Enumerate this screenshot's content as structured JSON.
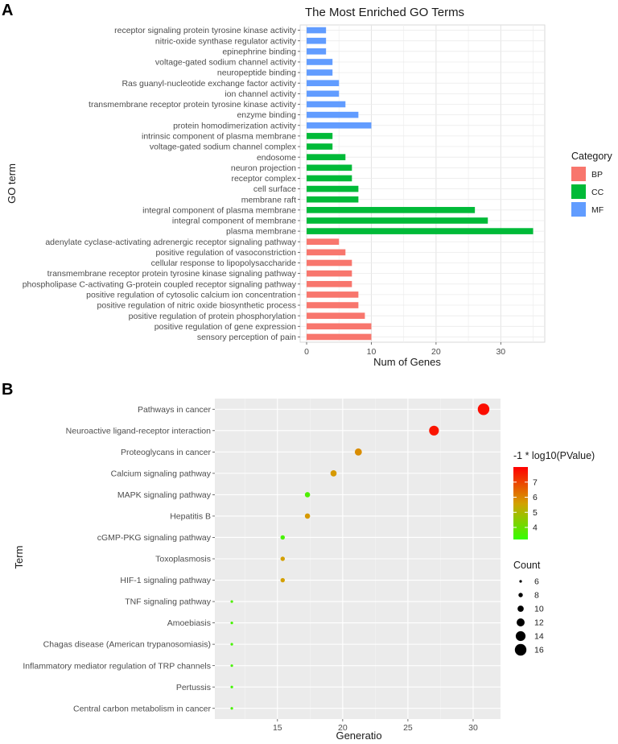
{
  "panels": {
    "a": "A",
    "b": "B"
  },
  "chart_data": [
    {
      "type": "bar",
      "orientation": "horizontal",
      "title": "The Most Enriched GO Terms",
      "xlabel": "Num of Genes",
      "ylabel": "GO term",
      "xlim": [
        -1,
        36.8
      ],
      "xticks": [
        0,
        10,
        20,
        30
      ],
      "legend": {
        "title": "Category",
        "position": "right",
        "entries": [
          {
            "label": "BP",
            "color": "#F8766D"
          },
          {
            "label": "CC",
            "color": "#00BA38"
          },
          {
            "label": "MF",
            "color": "#619CFF"
          }
        ]
      },
      "categories": [
        "receptor signaling protein tyrosine kinase activity",
        "nitric-oxide synthase regulator activity",
        "epinephrine binding",
        "voltage-gated sodium channel activity",
        "neuropeptide binding",
        "Ras guanyl-nucleotide exchange factor activity",
        "ion channel activity",
        "transmembrane receptor protein tyrosine kinase activity",
        "enzyme binding",
        "protein homodimerization activity",
        "intrinsic component of plasma membrane",
        "voltage-gated sodium channel complex",
        "endosome",
        "neuron projection",
        "receptor complex",
        "cell surface",
        "membrane raft",
        "integral component of plasma membrane",
        "integral component of membrane",
        "plasma membrane",
        "adenylate cyclase-activating adrenergic receptor signaling pathway",
        "positive regulation of vasoconstriction",
        "cellular response to lipopolysaccharide",
        "transmembrane receptor protein tyrosine kinase signaling pathway",
        "phospholipase C-activating G-protein coupled receptor signaling pathway",
        "positive regulation of cytosolic calcium ion concentration",
        "positive regulation of nitric oxide biosynthetic process",
        "positive regulation of protein phosphorylation",
        "positive regulation of gene expression",
        "sensory perception of pain"
      ],
      "values": [
        3,
        3,
        3,
        4,
        4,
        5,
        5,
        6,
        8,
        10,
        4,
        4,
        6,
        7,
        7,
        8,
        8,
        26,
        28,
        35,
        5,
        6,
        7,
        7,
        7,
        8,
        8,
        9,
        10,
        10
      ],
      "category_groups": [
        "MF",
        "MF",
        "MF",
        "MF",
        "MF",
        "MF",
        "MF",
        "MF",
        "MF",
        "MF",
        "CC",
        "CC",
        "CC",
        "CC",
        "CC",
        "CC",
        "CC",
        "CC",
        "CC",
        "CC",
        "BP",
        "BP",
        "BP",
        "BP",
        "BP",
        "BP",
        "BP",
        "BP",
        "BP",
        "BP"
      ]
    },
    {
      "type": "scatter",
      "xlabel": "Generatio",
      "ylabel": "Term",
      "xlim": [
        10.2,
        32.1
      ],
      "xticks": [
        15,
        20,
        25,
        30
      ],
      "terms": [
        "Pathways in cancer",
        "Neuroactive ligand-receptor interaction",
        "Proteoglycans in cancer",
        "Calcium signaling pathway",
        "MAPK signaling pathway",
        "Hepatitis B",
        "cGMP-PKG signaling pathway",
        "Toxoplasmosis",
        "HIF-1 signaling pathway",
        "TNF signaling pathway",
        "Amoebiasis",
        "Chagas disease (American trypanosomiasis)",
        "Inflammatory mediator regulation of TRP channels",
        "Pertussis",
        "Central carbon metabolism in cancer"
      ],
      "x": [
        30.8,
        27.0,
        21.2,
        19.3,
        17.3,
        17.3,
        15.4,
        15.4,
        15.4,
        11.5,
        11.5,
        11.5,
        11.5,
        11.5,
        11.5
      ],
      "count": [
        16,
        14,
        11,
        10,
        9,
        9,
        8,
        8,
        8,
        6,
        6,
        6,
        6,
        6,
        6
      ],
      "neg_log10_p": [
        7.8,
        7.7,
        5.9,
        5.7,
        3.6,
        5.7,
        3.5,
        5.6,
        5.6,
        3.6,
        3.5,
        3.5,
        3.5,
        3.4,
        3.5
      ],
      "color_legend": {
        "title": "-1 * log10(PValue)",
        "ticks": [
          4,
          5,
          6,
          7
        ],
        "range": [
          3.2,
          8.0
        ],
        "low_color": "#33FF00",
        "mid_color": "#D4A000",
        "high_color": "#FF0000"
      },
      "size_legend": {
        "title": "Count",
        "values": [
          6,
          8,
          10,
          12,
          14,
          16
        ]
      }
    }
  ]
}
